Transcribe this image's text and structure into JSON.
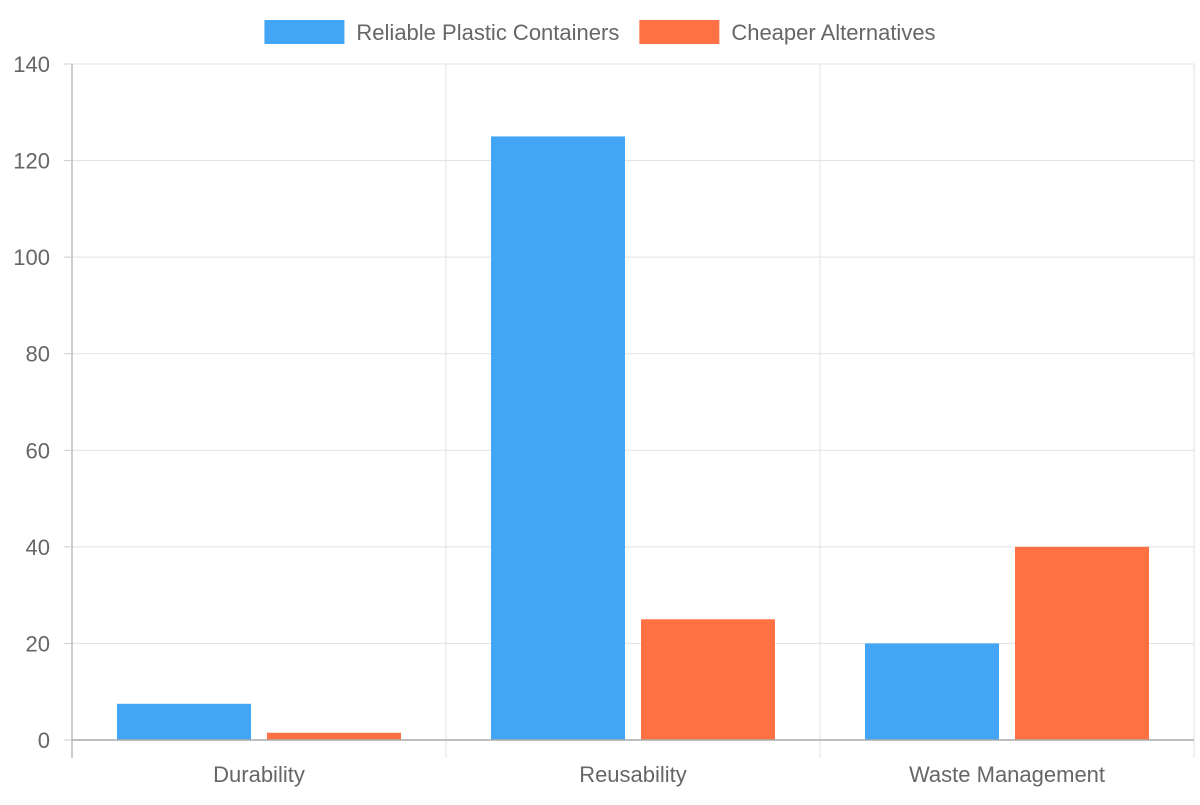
{
  "chart_data": {
    "type": "bar",
    "categories": [
      "Durability",
      "Reusability",
      "Waste Management"
    ],
    "series": [
      {
        "name": "Reliable Plastic Containers",
        "values": [
          7.5,
          125,
          20
        ],
        "color": "#42A5F5"
      },
      {
        "name": "Cheaper Alternatives",
        "values": [
          1.5,
          25,
          40
        ],
        "color": "#FF7043"
      }
    ],
    "ylim": [
      0,
      140
    ],
    "yticks": [
      0,
      20,
      40,
      60,
      80,
      100,
      120,
      140
    ],
    "grid": true,
    "legend_position": "top-center"
  }
}
